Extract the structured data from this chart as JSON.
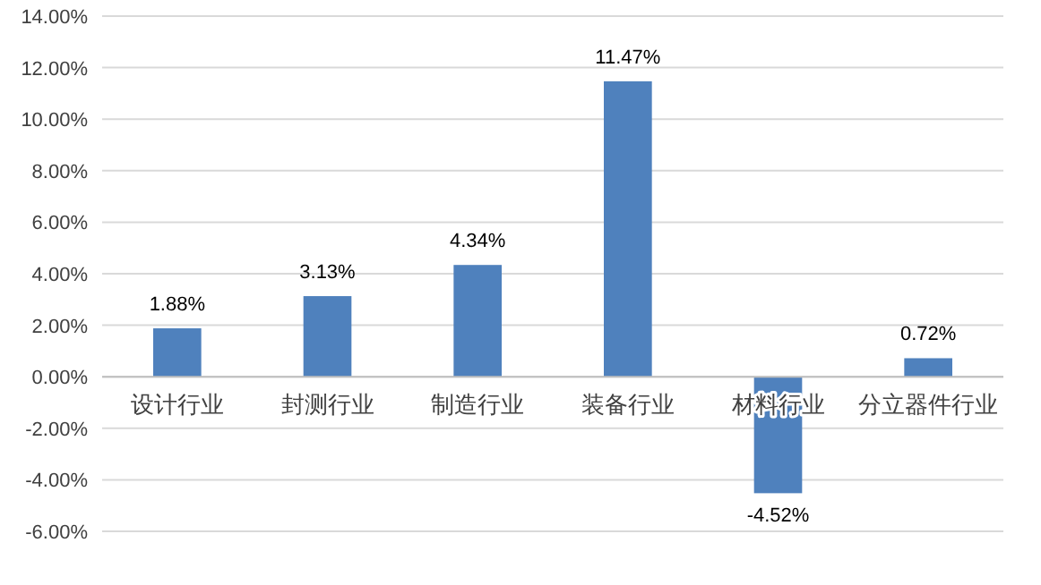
{
  "chart_data": {
    "type": "bar",
    "categories": [
      "设计行业",
      "封测行业",
      "制造行业",
      "装备行业",
      "材料行业",
      "分立器件行业"
    ],
    "values": [
      1.88,
      3.13,
      4.34,
      11.47,
      -4.52,
      0.72
    ],
    "value_labels": [
      "1.88%",
      "3.13%",
      "4.34%",
      "11.47%",
      "-4.52%",
      "0.72%"
    ],
    "color": "#4f81bd",
    "ylim": [
      -6,
      14
    ],
    "yticks": [
      {
        "value": -6,
        "label": "-6.00%"
      },
      {
        "value": -4,
        "label": "-4.00%"
      },
      {
        "value": -2,
        "label": "-2.00%"
      },
      {
        "value": 0,
        "label": "0.00%"
      },
      {
        "value": 2,
        "label": "2.00%"
      },
      {
        "value": 4,
        "label": "4.00%"
      },
      {
        "value": 6,
        "label": "6.00%"
      },
      {
        "value": 8,
        "label": "8.00%"
      },
      {
        "value": 10,
        "label": "10.00%"
      },
      {
        "value": 12,
        "label": "12.00%"
      },
      {
        "value": 14,
        "label": "14.00%"
      }
    ],
    "grid": "y"
  }
}
